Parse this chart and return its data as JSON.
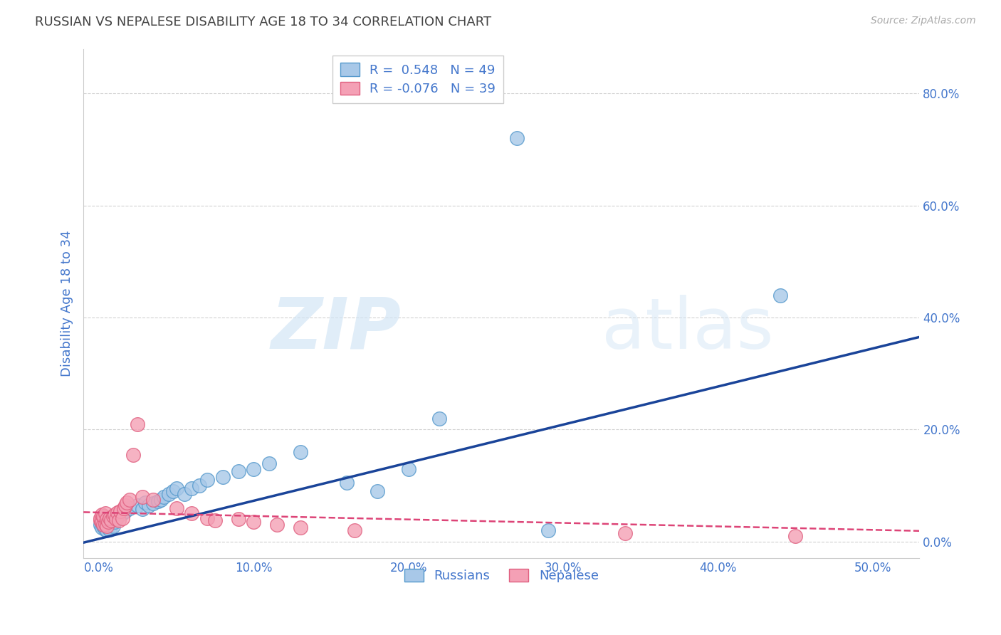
{
  "title": "RUSSIAN VS NEPALESE DISABILITY AGE 18 TO 34 CORRELATION CHART",
  "source": "Source: ZipAtlas.com",
  "xlabel_ticks": [
    "0.0%",
    "10.0%",
    "20.0%",
    "30.0%",
    "40.0%",
    "50.0%"
  ],
  "ylabel_ticks": [
    "0.0%",
    "20.0%",
    "40.0%",
    "60.0%",
    "80.0%"
  ],
  "xlabel_vals": [
    0.0,
    0.1,
    0.2,
    0.3,
    0.4,
    0.5
  ],
  "ylabel_vals": [
    0.0,
    0.2,
    0.4,
    0.6,
    0.8
  ],
  "xlim": [
    -0.01,
    0.53
  ],
  "ylim": [
    -0.03,
    0.88
  ],
  "ylabel": "Disability Age 18 to 34",
  "watermark_zip": "ZIP",
  "watermark_atlas": "atlas",
  "russian_color": "#a8c8e8",
  "russian_edge": "#5599cc",
  "nepalese_color": "#f4a0b5",
  "nepalese_edge": "#e06080",
  "trend_russian_color": "#1a4499",
  "trend_nepalese_color": "#dd4477",
  "background": "#ffffff",
  "grid_color": "#cccccc",
  "title_color": "#444444",
  "axis_label_color": "#4477cc",
  "tick_color": "#4477cc",
  "russians_x": [
    0.001,
    0.002,
    0.002,
    0.003,
    0.003,
    0.004,
    0.004,
    0.005,
    0.005,
    0.006,
    0.006,
    0.007,
    0.007,
    0.008,
    0.009,
    0.01,
    0.011,
    0.012,
    0.013,
    0.015,
    0.017,
    0.02,
    0.025,
    0.028,
    0.03,
    0.032,
    0.035,
    0.038,
    0.04,
    0.042,
    0.045,
    0.048,
    0.05,
    0.055,
    0.06,
    0.065,
    0.07,
    0.08,
    0.09,
    0.1,
    0.11,
    0.13,
    0.16,
    0.18,
    0.2,
    0.22,
    0.27,
    0.29,
    0.44
  ],
  "russians_y": [
    0.03,
    0.025,
    0.035,
    0.028,
    0.032,
    0.022,
    0.038,
    0.02,
    0.03,
    0.025,
    0.04,
    0.022,
    0.035,
    0.042,
    0.028,
    0.035,
    0.04,
    0.045,
    0.048,
    0.05,
    0.055,
    0.06,
    0.065,
    0.058,
    0.07,
    0.065,
    0.068,
    0.072,
    0.075,
    0.08,
    0.085,
    0.09,
    0.095,
    0.085,
    0.095,
    0.1,
    0.11,
    0.115,
    0.125,
    0.13,
    0.14,
    0.16,
    0.105,
    0.09,
    0.13,
    0.22,
    0.72,
    0.02,
    0.44
  ],
  "nepalese_x": [
    0.001,
    0.001,
    0.002,
    0.002,
    0.003,
    0.003,
    0.004,
    0.004,
    0.005,
    0.005,
    0.006,
    0.007,
    0.008,
    0.009,
    0.01,
    0.011,
    0.012,
    0.013,
    0.014,
    0.015,
    0.016,
    0.017,
    0.018,
    0.02,
    0.022,
    0.025,
    0.028,
    0.035,
    0.05,
    0.06,
    0.07,
    0.075,
    0.09,
    0.1,
    0.115,
    0.13,
    0.165,
    0.34,
    0.45
  ],
  "nepalese_y": [
    0.038,
    0.042,
    0.035,
    0.048,
    0.03,
    0.045,
    0.032,
    0.05,
    0.028,
    0.04,
    0.035,
    0.042,
    0.038,
    0.045,
    0.048,
    0.04,
    0.052,
    0.038,
    0.055,
    0.042,
    0.06,
    0.065,
    0.07,
    0.075,
    0.155,
    0.21,
    0.08,
    0.075,
    0.06,
    0.05,
    0.042,
    0.038,
    0.04,
    0.035,
    0.03,
    0.025,
    0.02,
    0.015,
    0.01
  ],
  "trend_russian_slope": 0.68,
  "trend_russian_intercept": 0.005,
  "trend_nepalese_slope": -0.062,
  "trend_nepalese_intercept": 0.052
}
